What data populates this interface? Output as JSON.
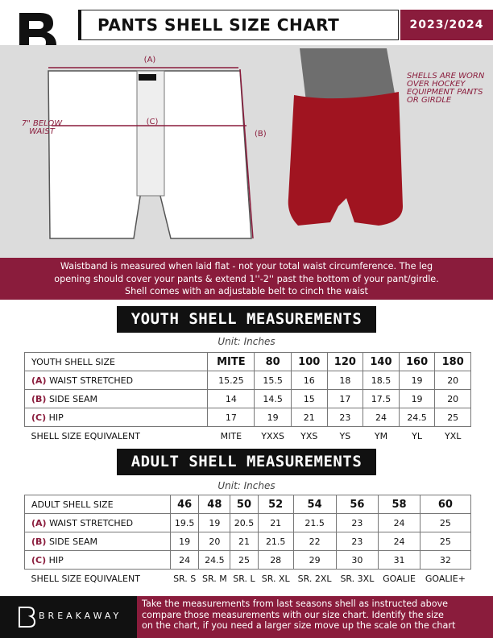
{
  "header": {
    "title": "PANTS SHELL SIZE CHART",
    "season": "2023/2024"
  },
  "diagram": {
    "label_a": "(A)",
    "label_b": "(B)",
    "label_c": "(C)",
    "below_waist": [
      "7\" BELOW",
      "WAIST"
    ],
    "note": [
      "SHELLS ARE WORN",
      "OVER HOCKEY",
      "EQUIPMENT PANTS",
      "OR GIRDLE"
    ]
  },
  "notice": [
    "Waistband is measured when laid flat - not your total waist circumference. The leg",
    "opening should cover your pants & extend 1''-2'' past the bottom of your pant/girdle.",
    "Shell comes with an adjustable belt to cinch the waist"
  ],
  "youth": {
    "title": "YOUTH SHELL MEASUREMENTS",
    "unit": "Unit: Inches",
    "header_label": "YOUTH SHELL SIZE",
    "sizes": [
      "MITE",
      "80",
      "100",
      "120",
      "140",
      "160",
      "180"
    ],
    "rows": [
      {
        "letter": "(A)",
        "label": "WAIST STRETCHED",
        "values": [
          15.25,
          15.5,
          16,
          18,
          18.5,
          19,
          20
        ]
      },
      {
        "letter": "(B)",
        "label": "SIDE SEAM",
        "values": [
          14,
          14.5,
          15,
          17,
          17.5,
          19,
          20
        ]
      },
      {
        "letter": "(C)",
        "label": "HIP",
        "values": [
          17,
          19,
          21,
          23,
          24,
          24.5,
          25
        ]
      }
    ],
    "equivalent_label": "SHELL SIZE EQUIVALENT",
    "equivalent": [
      "MITE",
      "YXXS",
      "YXS",
      "YS",
      "YM",
      "YL",
      "YXL"
    ]
  },
  "adult": {
    "title": "ADULT SHELL MEASUREMENTS",
    "unit": "Unit: Inches",
    "header_label": "ADULT SHELL SIZE",
    "sizes": [
      "46",
      "48",
      "50",
      "52",
      "54",
      "56",
      "58",
      "60"
    ],
    "rows": [
      {
        "letter": "(A)",
        "label": "WAIST STRETCHED",
        "values": [
          19.5,
          19,
          20.5,
          21,
          21.5,
          23,
          24,
          25
        ]
      },
      {
        "letter": "(B)",
        "label": "SIDE SEAM",
        "values": [
          19,
          20,
          21,
          21.5,
          22,
          23,
          24,
          25
        ]
      },
      {
        "letter": "(C)",
        "label": "HIP",
        "values": [
          24,
          24.5,
          25,
          28,
          29,
          30,
          31,
          32
        ]
      }
    ],
    "equivalent_label": "SHELL SIZE EQUIVALENT",
    "equivalent": [
      "SR. S",
      "SR. M",
      "SR. L",
      "SR. XL",
      "SR. 2XL",
      "SR. 3XL",
      "GOALIE",
      "GOALIE+"
    ]
  },
  "footer": {
    "brand": "BREAKAWAY",
    "text": [
      "Take the measurements from last seasons shell as instructed above",
      "compare those measurements  with our size chart. Identify the size",
      "on the chart, if you need a larger size move up the scale on the chart"
    ]
  }
}
